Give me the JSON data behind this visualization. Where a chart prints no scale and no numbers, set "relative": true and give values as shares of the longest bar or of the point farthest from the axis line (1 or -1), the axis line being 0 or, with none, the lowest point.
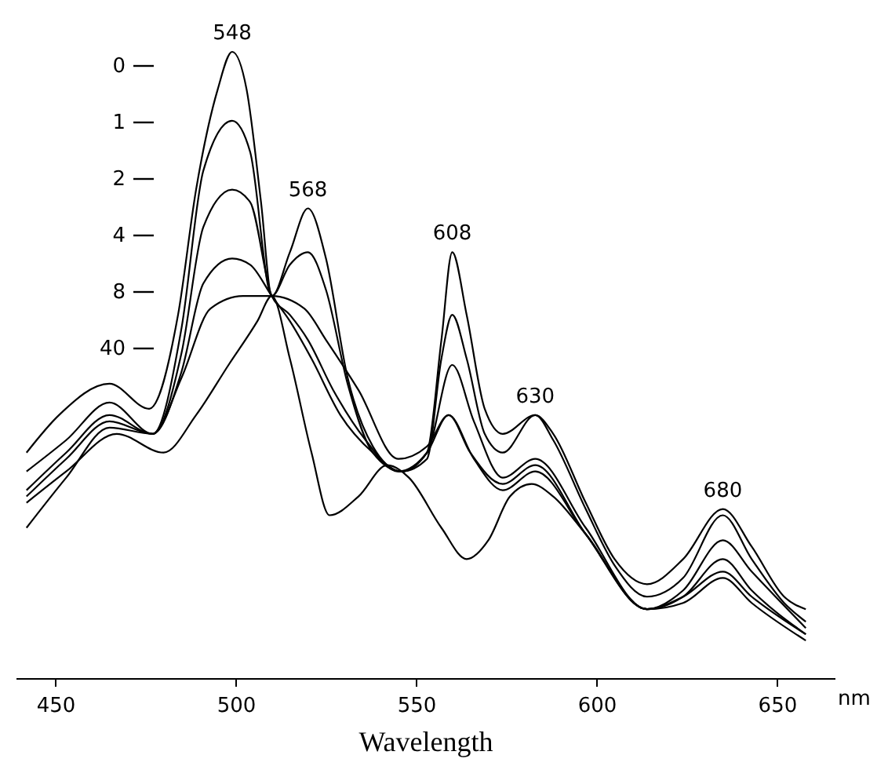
{
  "chart_data": {
    "type": "line",
    "relative": true,
    "xlabel": "Wavelength",
    "xlim": [
      439,
      666
    ],
    "xticks": [
      450,
      500,
      550,
      600,
      650
    ],
    "grid": false,
    "legend": "top left",
    "marker": "none",
    "line_style": "solid",
    "annotations": [
      "nm",
      {
        "text": "548",
        "x": 499,
        "y": 1.0
      },
      {
        "text": "568",
        "x": 520,
        "y": 0.75
      },
      {
        "text": "608",
        "x": 560,
        "y": 0.68
      },
      {
        "text": "630",
        "x": 583,
        "y": 0.42
      },
      {
        "text": "680",
        "x": 635,
        "y": 0.27
      }
    ],
    "series": [
      {
        "name": "0",
        "color": "#000000",
        "x": [
          442,
          451,
          465,
          476,
          484,
          489,
          495,
          499,
          503,
          507,
          510,
          515,
          520,
          525,
          531,
          538,
          546,
          553,
          557,
          560,
          564,
          569,
          574,
          583,
          588,
          597,
          605,
          614,
          624,
          635,
          643,
          652,
          658
        ],
        "values": [
          0.36,
          0.42,
          0.47,
          0.43,
          0.58,
          0.78,
          0.94,
          1.0,
          0.94,
          0.76,
          0.61,
          0.68,
          0.75,
          0.67,
          0.48,
          0.37,
          0.33,
          0.36,
          0.54,
          0.68,
          0.58,
          0.43,
          0.39,
          0.42,
          0.39,
          0.28,
          0.19,
          0.15,
          0.19,
          0.27,
          0.21,
          0.13,
          0.11
        ]
      },
      {
        "name": "1",
        "color": "#000000",
        "x": [
          442,
          453,
          465,
          477,
          485,
          491,
          499,
          504,
          510,
          515,
          520,
          525,
          531,
          538,
          546,
          553,
          557,
          560,
          564,
          569,
          574,
          583,
          588,
          597,
          605,
          614,
          624,
          635,
          643,
          652,
          658
        ],
        "values": [
          0.33,
          0.38,
          0.44,
          0.39,
          0.56,
          0.81,
          0.89,
          0.84,
          0.61,
          0.66,
          0.68,
          0.62,
          0.47,
          0.36,
          0.33,
          0.35,
          0.51,
          0.58,
          0.51,
          0.39,
          0.36,
          0.42,
          0.38,
          0.27,
          0.18,
          0.13,
          0.16,
          0.26,
          0.19,
          0.12,
          0.09
        ]
      },
      {
        "name": "2",
        "color": "#000000",
        "x": [
          442,
          453,
          465,
          477,
          485,
          491,
          499,
          504,
          510,
          515,
          520,
          527,
          536,
          545,
          553,
          560,
          566,
          574,
          583,
          597,
          614,
          624,
          635,
          643,
          658
        ],
        "values": [
          0.3,
          0.36,
          0.42,
          0.39,
          0.52,
          0.72,
          0.78,
          0.76,
          0.61,
          0.58,
          0.54,
          0.46,
          0.38,
          0.33,
          0.36,
          0.5,
          0.41,
          0.32,
          0.35,
          0.24,
          0.11,
          0.14,
          0.22,
          0.17,
          0.08
        ]
      },
      {
        "name": "4",
        "color": "#000000",
        "x": [
          442,
          453,
          465,
          477,
          485,
          491,
          499,
          504,
          510,
          515,
          521,
          529,
          538,
          546,
          553,
          559,
          565,
          574,
          583,
          597,
          614,
          624,
          635,
          643,
          658
        ],
        "values": [
          0.29,
          0.35,
          0.41,
          0.39,
          0.49,
          0.63,
          0.67,
          0.66,
          0.61,
          0.57,
          0.51,
          0.42,
          0.36,
          0.33,
          0.36,
          0.42,
          0.36,
          0.31,
          0.34,
          0.23,
          0.11,
          0.13,
          0.19,
          0.14,
          0.07
        ]
      },
      {
        "name": "8",
        "color": "#000000",
        "x": [
          442,
          453,
          465,
          477,
          485,
          493,
          502,
          510,
          519,
          525,
          534,
          545,
          553,
          559,
          566,
          574,
          583,
          597,
          614,
          624,
          635,
          643,
          658
        ],
        "values": [
          0.24,
          0.32,
          0.4,
          0.39,
          0.48,
          0.59,
          0.61,
          0.61,
          0.59,
          0.54,
          0.46,
          0.35,
          0.37,
          0.42,
          0.35,
          0.3,
          0.33,
          0.23,
          0.11,
          0.13,
          0.17,
          0.13,
          0.07
        ]
      },
      {
        "name": "40",
        "color": "#000000",
        "x": [
          442,
          453,
          467,
          480,
          489,
          498,
          506,
          510,
          515,
          521,
          526,
          534,
          542,
          548,
          557,
          564,
          570,
          576,
          582,
          588,
          597,
          614,
          624,
          635,
          643,
          658
        ],
        "values": [
          0.28,
          0.33,
          0.39,
          0.36,
          0.42,
          0.5,
          0.57,
          0.61,
          0.51,
          0.36,
          0.26,
          0.29,
          0.34,
          0.32,
          0.24,
          0.19,
          0.22,
          0.29,
          0.31,
          0.29,
          0.23,
          0.11,
          0.12,
          0.16,
          0.12,
          0.06
        ]
      }
    ]
  }
}
